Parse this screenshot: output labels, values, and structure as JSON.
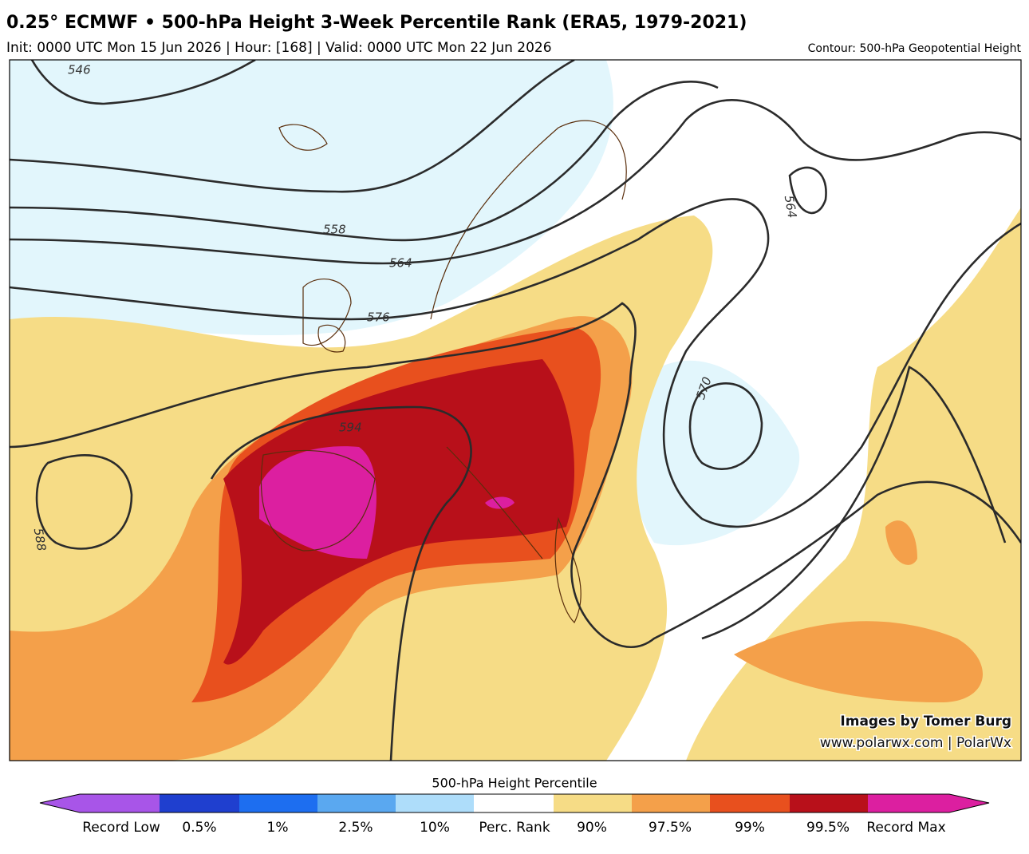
{
  "header": {
    "title": "0.25° ECMWF • 500-hPa Height 3-Week Percentile Rank (ERA5, 1979-2021)",
    "subtitle": "Init: 0000 UTC Mon 15 Jun 2026 | Hour: [168] | Valid: 0000 UTC Mon 22 Jun 2026",
    "contour_note": "Contour: 500-hPa Geopotential Height"
  },
  "map": {
    "contour_labels": [
      546,
      558,
      564,
      576,
      594,
      588,
      564,
      570
    ],
    "credits": [
      "Images by Tomer Burg",
      "www.polarwx.com | PolarWx"
    ]
  },
  "colorbar": {
    "title": "500-hPa Height Percentile",
    "labels": [
      "Record Low",
      "0.5%",
      "1%",
      "2.5%",
      "10%",
      "Perc. Rank",
      "90%",
      "97.5%",
      "99%",
      "99.5%",
      "Record Max"
    ]
  }
}
